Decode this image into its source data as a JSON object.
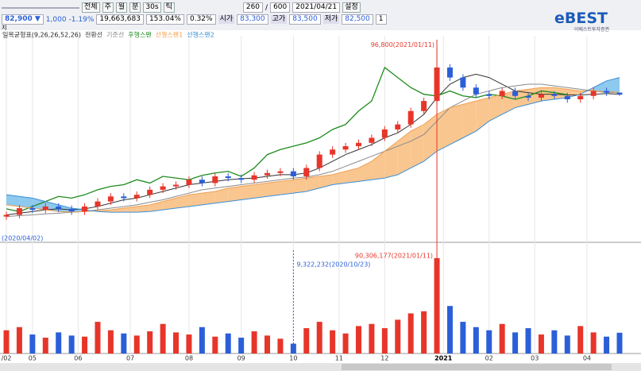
{
  "toolbar": {
    "buttons": [
      "전체",
      "주",
      "월",
      "분",
      "30s",
      "틱"
    ],
    "count": "260",
    "sep": "/",
    "total": "600",
    "date": "2021/04/21",
    "settings": "설정",
    "price": "82,900 ▼",
    "change": "1,000",
    "rate": "-1.19%",
    "volume": "19,663,683",
    "vol_ratio": "153.04%",
    "turnover": "0.32%",
    "open_label": "시가",
    "open": "83,300",
    "high_label": "고가",
    "high": "83,500",
    "low_label": "저가",
    "low": "82,500",
    "period": "1",
    "logo": "eBEST",
    "logo_sub": "이베스트투자증권",
    "pane_label": "지"
  },
  "chart_data": {
    "type": "candlestick",
    "indicator": "일목균형표(9,26,26,52,26)",
    "xlim": [
      0,
      47
    ],
    "xticks": [
      {
        "value": 0,
        "label": "/02"
      },
      {
        "value": 2,
        "label": "05"
      },
      {
        "value": 5.5,
        "label": "06"
      },
      {
        "value": 9.5,
        "label": "07"
      },
      {
        "value": 14,
        "label": "08"
      },
      {
        "value": 18,
        "label": "09"
      },
      {
        "value": 22,
        "label": "10"
      },
      {
        "value": 25.5,
        "label": "11"
      },
      {
        "value": 29,
        "label": "12"
      },
      {
        "value": 33.5,
        "label": "2021"
      },
      {
        "value": 37,
        "label": "02"
      },
      {
        "value": 40.5,
        "label": "03"
      },
      {
        "value": 44.5,
        "label": "04"
      }
    ],
    "ylim": [
      40000,
      100000
    ],
    "up_color": "#e8352a",
    "down_color": "#2b5fd9",
    "ohlc": {
      "open": [
        46500,
        47000,
        49000,
        48500,
        49500,
        48800,
        48000,
        49500,
        51000,
        52500,
        52000,
        53000,
        54500,
        55500,
        56000,
        57500,
        56500,
        58500,
        58000,
        57500,
        58800,
        59500,
        60000,
        58500,
        61000,
        65000,
        66500,
        67500,
        68500,
        70000,
        72500,
        74000,
        78000,
        81000,
        91000,
        88000,
        85000,
        83000,
        82500,
        84000,
        82500,
        82000,
        83000,
        82500,
        81500,
        82500,
        84000,
        83500
      ],
      "high": [
        48000,
        50000,
        50000,
        50500,
        50500,
        49800,
        50500,
        52000,
        53500,
        53500,
        54000,
        55500,
        56500,
        57000,
        58500,
        58500,
        59500,
        59500,
        59000,
        59800,
        60500,
        61000,
        61000,
        62000,
        66000,
        67500,
        68500,
        69500,
        71000,
        73500,
        75000,
        79000,
        82000,
        96800,
        92000,
        89000,
        86000,
        84000,
        85000,
        85000,
        83500,
        84000,
        84000,
        83500,
        83500,
        85000,
        85000,
        83500
      ],
      "low": [
        45500,
        46000,
        47500,
        47500,
        47800,
        47000,
        47000,
        48500,
        50000,
        51000,
        51000,
        52000,
        53500,
        54500,
        55000,
        55500,
        55500,
        57000,
        56500,
        56500,
        57800,
        58500,
        57500,
        57500,
        60000,
        64000,
        65500,
        66500,
        67500,
        69000,
        71500,
        73000,
        77000,
        80000,
        87000,
        84000,
        82000,
        81500,
        81500,
        81500,
        81000,
        81000,
        81500,
        80500,
        80500,
        81500,
        82500,
        82500
      ],
      "close": [
        47000,
        49000,
        48500,
        49500,
        48800,
        48000,
        49500,
        51000,
        52500,
        52000,
        53000,
        54500,
        55500,
        56000,
        57500,
        56500,
        58500,
        58000,
        57500,
        58800,
        59500,
        60000,
        58500,
        61000,
        65000,
        66500,
        67500,
        68500,
        70000,
        72500,
        74000,
        78000,
        81000,
        91000,
        88000,
        85000,
        83000,
        82500,
        84000,
        82500,
        82000,
        83000,
        82500,
        81500,
        82500,
        84000,
        83500,
        82900
      ]
    },
    "series": [
      {
        "name": "전환선",
        "color": "#333333",
        "values": [
          47000,
          47500,
          48000,
          48500,
          48800,
          48500,
          48800,
          49500,
          50500,
          51500,
          52000,
          53000,
          54000,
          55000,
          56000,
          56500,
          57000,
          57500,
          57800,
          58000,
          58500,
          59000,
          59000,
          59500,
          61000,
          63000,
          65000,
          66500,
          68000,
          70000,
          71500,
          74000,
          77000,
          82000,
          86000,
          88000,
          89000,
          88000,
          86000,
          84000,
          83500,
          83000,
          83000,
          82800,
          82800,
          83000,
          83200,
          83000
        ]
      },
      {
        "name": "기준선",
        "color": "#8a8a8a",
        "values": [
          46500,
          46800,
          47000,
          47300,
          47500,
          47800,
          48000,
          48500,
          49000,
          49500,
          50000,
          50800,
          51500,
          52500,
          53500,
          54500,
          55000,
          55500,
          56000,
          56500,
          57000,
          57500,
          58000,
          58300,
          59000,
          60000,
          61500,
          63000,
          64500,
          66000,
          67500,
          69000,
          71000,
          75000,
          79000,
          81000,
          83000,
          84000,
          85000,
          85500,
          86000,
          86000,
          85500,
          85000,
          84500,
          84000,
          83500,
          83500
        ]
      },
      {
        "name": "후행스팬",
        "color": "#1e8c1e",
        "values": [
          48800,
          48000,
          49500,
          51000,
          52500,
          52000,
          53000,
          54500,
          55500,
          56000,
          57500,
          56500,
          58500,
          58000,
          57500,
          58800,
          59500,
          60000,
          58500,
          61000,
          65000,
          66500,
          67500,
          68500,
          70000,
          72500,
          74000,
          78000,
          81000,
          91000,
          88000,
          85000,
          83000,
          82500,
          84000,
          82500,
          82000,
          83000,
          82500,
          81500,
          82500,
          84000,
          83500,
          82900,
          null,
          null,
          null,
          null
        ]
      },
      {
        "name": "선행스팬1",
        "color": "#f0a050",
        "values": [
          50000,
          49500,
          49000,
          48500,
          48000,
          47800,
          48000,
          48200,
          48500,
          49000,
          49500,
          50000,
          51000,
          52000,
          53000,
          53500,
          54000,
          55000,
          55500,
          56000,
          56500,
          57000,
          57500,
          58000,
          58500,
          59000,
          60000,
          61000,
          63000,
          66000,
          69000,
          72000,
          74000,
          77000,
          79000,
          80000,
          81000,
          82000,
          83000,
          84000,
          84500,
          85000,
          85000,
          84500,
          84000,
          84000,
          83800,
          83500
        ]
      },
      {
        "name": "선행스팬2",
        "color": "#3a8fd8",
        "values": [
          53000,
          52500,
          52000,
          51000,
          50000,
          49000,
          48500,
          48000,
          47800,
          47800,
          47800,
          48000,
          48500,
          49000,
          49500,
          50000,
          50500,
          51000,
          51500,
          52000,
          52500,
          53000,
          53500,
          54000,
          55000,
          56000,
          56500,
          57000,
          57500,
          58000,
          59000,
          61000,
          63000,
          66000,
          68000,
          70000,
          72000,
          75000,
          77000,
          79000,
          80000,
          81000,
          81500,
          82000,
          83000,
          85000,
          87000,
          88000
        ]
      }
    ],
    "volume": {
      "ylim": [
        0,
        100000000
      ],
      "values": [
        22000000,
        25000000,
        18000000,
        15000000,
        20000000,
        17000000,
        16000000,
        30000000,
        22000000,
        19000000,
        17000000,
        21000000,
        28000000,
        20000000,
        18000000,
        25000000,
        16000000,
        19000000,
        15000000,
        21000000,
        17000000,
        14000000,
        9322232,
        24000000,
        30000000,
        22000000,
        19000000,
        26000000,
        28000000,
        24000000,
        32000000,
        38000000,
        40000000,
        90306177,
        45000000,
        30000000,
        25000000,
        22000000,
        28000000,
        20000000,
        24000000,
        18000000,
        22000000,
        17000000,
        26000000,
        20000000,
        16000000,
        19663683
      ]
    },
    "annotations": [
      "96,800(2021/01/11)",
      "90,306,177(2021/01/11)",
      "9,322,232(2020/10/23)",
      "(2020/04/02)"
    ]
  }
}
